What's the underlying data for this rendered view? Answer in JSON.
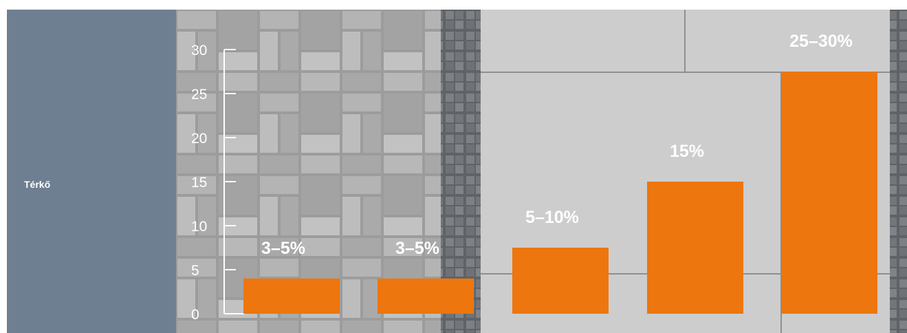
{
  "sidebar": {
    "label": "Térkő"
  },
  "colors": {
    "bar": "#ed760e",
    "sidebar": "#6e7f92",
    "axis": "#ffffff"
  },
  "chart_data": {
    "type": "bar",
    "title": "",
    "xlabel": "",
    "ylabel": "",
    "ylim": [
      0,
      30
    ],
    "yticks": [
      0,
      5,
      10,
      15,
      20,
      25,
      30
    ],
    "grid": false,
    "categories": [
      "",
      "",
      "",
      "",
      ""
    ],
    "values": [
      4,
      4,
      7.5,
      15,
      27.5
    ],
    "data_labels": [
      "3–5%",
      "3–5%",
      "5–10%",
      "15%",
      "25–30%"
    ]
  }
}
